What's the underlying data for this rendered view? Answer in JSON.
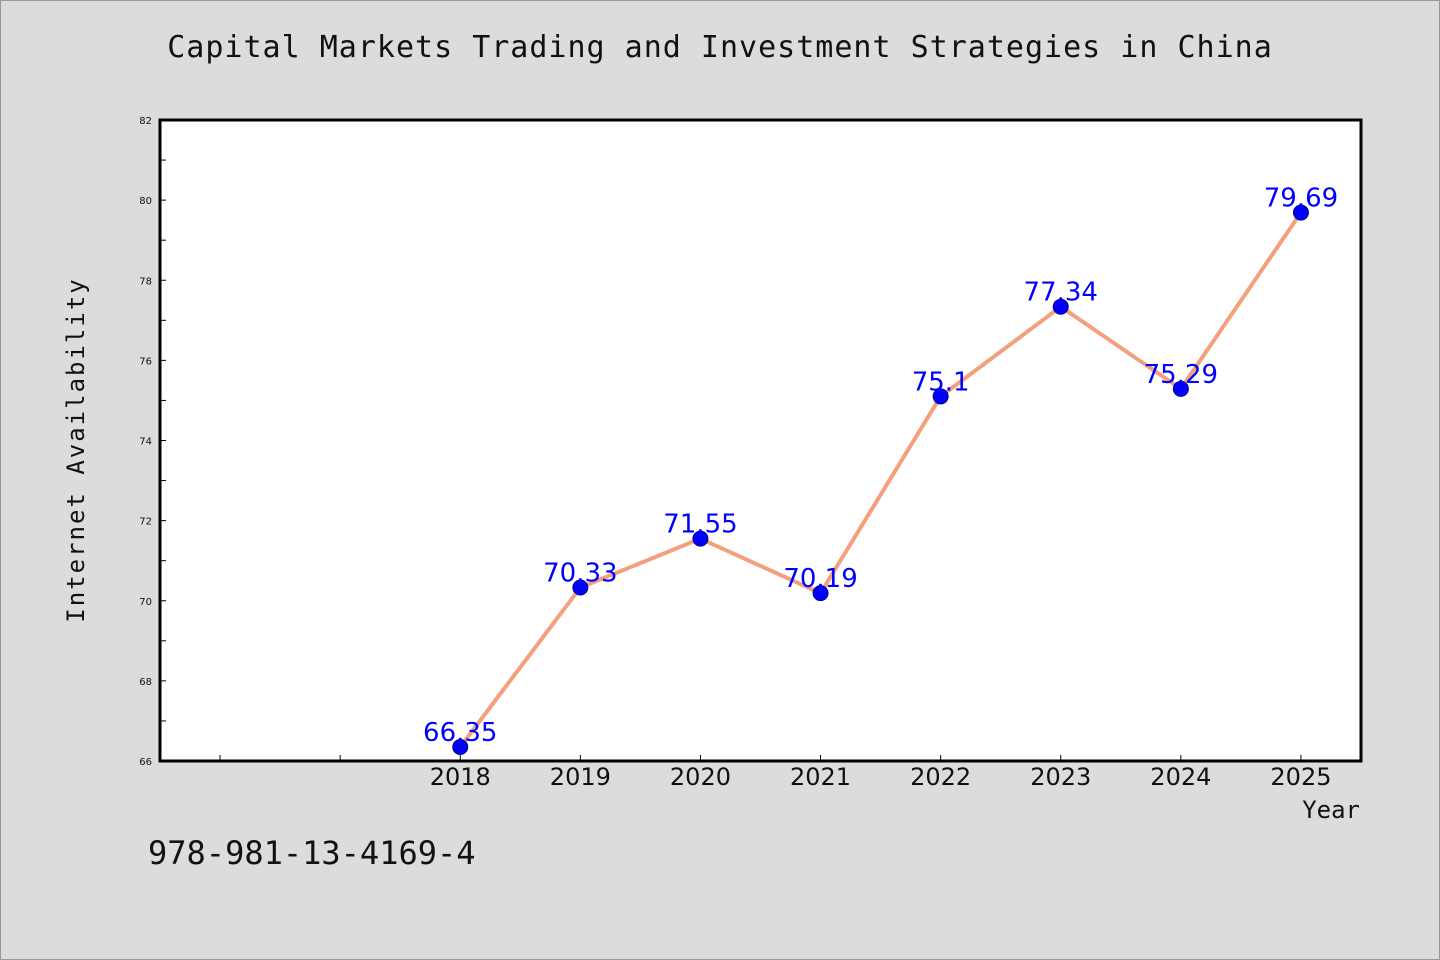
{
  "chart_data": {
    "type": "line",
    "title": "Capital Markets Trading and Investment Strategies in China",
    "xlabel": "Year",
    "ylabel": "Internet Availability",
    "x": [
      2018,
      2019,
      2020,
      2021,
      2022,
      2023,
      2024,
      2025
    ],
    "series": [
      {
        "values": [
          66.35,
          70.33,
          71.55,
          70.19,
          75.1,
          77.34,
          75.29,
          79.69
        ],
        "labels": [
          "66.35",
          "70.33",
          "71.55",
          "70.19",
          "75.1",
          "77.34",
          "75.29",
          "79.69"
        ]
      }
    ],
    "xlim": [
      2015.5,
      2025.5
    ],
    "ylim": [
      66,
      82
    ],
    "yticks": [
      66,
      68,
      70,
      72,
      74,
      76,
      78,
      80,
      82
    ],
    "xtick_labels": [
      "2018",
      "2019",
      "2020",
      "2021",
      "2022",
      "2023",
      "2024",
      "2025"
    ],
    "grid": false,
    "line_color": "#f4a07c",
    "marker_color": "#0000ff",
    "label_color": "#0000ff",
    "plot_background": "#ffffff",
    "page_background": "#dcdcdc"
  },
  "footnote": "978-981-13-4169-4"
}
